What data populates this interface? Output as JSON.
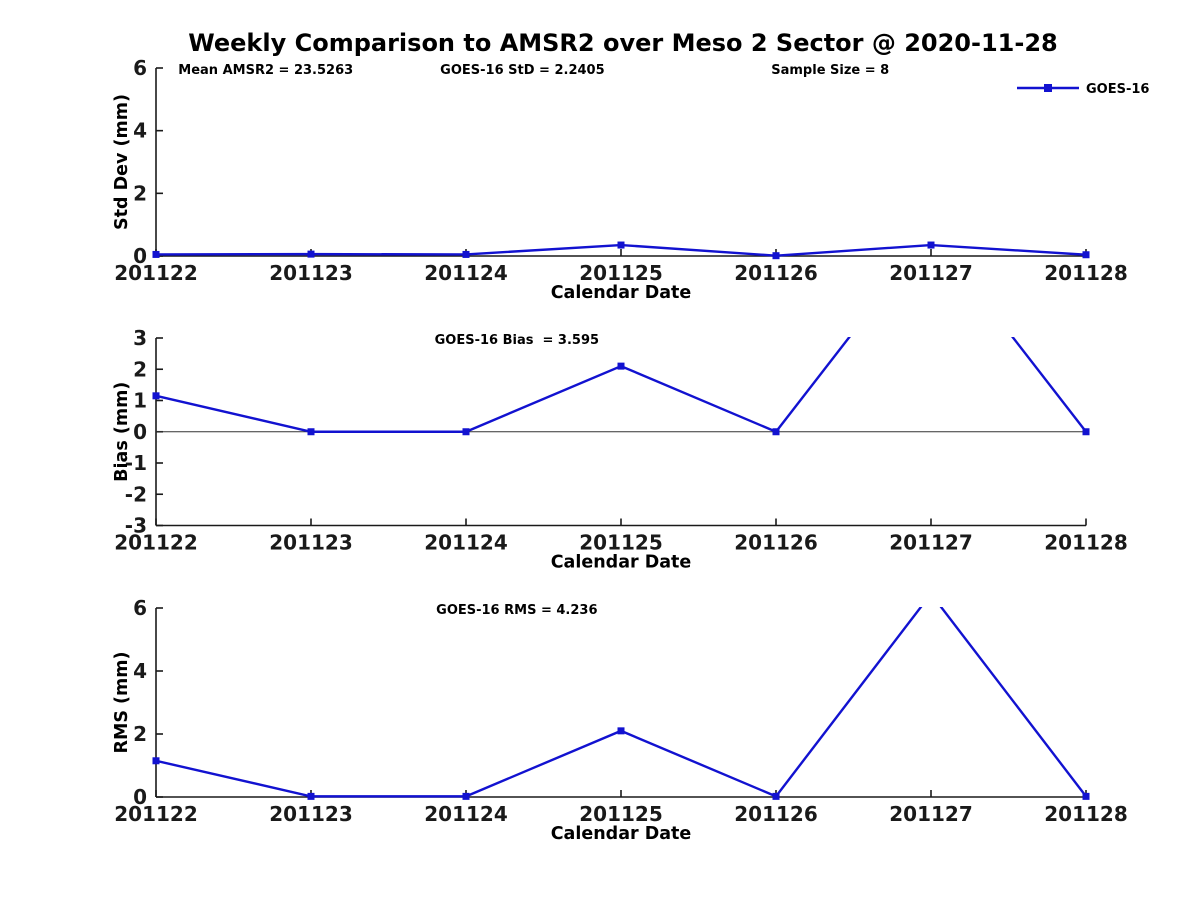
{
  "title": "Weekly Comparison to AMSR2 over Meso 2 Sector @ 2020-11-28",
  "colors": {
    "line": "#1212d0",
    "axis": "#1a1a1a",
    "tick_label": "#1a1a1a",
    "label_text": "#000000",
    "zero_line": "#333333"
  },
  "legend": {
    "label": "GOES-16",
    "position": "top-right",
    "frame": false
  },
  "chart_data": [
    {
      "type": "line",
      "ylabel": "Std Dev (mm)",
      "xlabel": "Calendar Date",
      "ylim": [
        0,
        6
      ],
      "yticks": [
        0,
        2,
        4,
        6
      ],
      "grid": false,
      "categories": [
        "201122",
        "201123",
        "201124",
        "201125",
        "201126",
        "201127",
        "201128"
      ],
      "series": [
        {
          "name": "GOES-16",
          "values": [
            0.05,
            0.06,
            0.05,
            0.35,
            0.01,
            0.35,
            0.04
          ]
        }
      ],
      "annotations": [
        {
          "text": "Mean AMSR2 = 23.5263",
          "xfrac": 0.118
        },
        {
          "text": "GOES-16 StD = 2.2405",
          "xfrac": 0.394
        },
        {
          "text": "Sample Size = 8",
          "xfrac": 0.725
        }
      ],
      "show_legend": true
    },
    {
      "type": "line",
      "ylabel": "Bias (mm)",
      "xlabel": "Calendar Date",
      "ylim": [
        -3,
        3
      ],
      "yticks": [
        -3,
        -2,
        -1,
        0,
        1,
        2,
        3
      ],
      "zeroline": true,
      "grid": false,
      "categories": [
        "201122",
        "201123",
        "201124",
        "201125",
        "201126",
        "201127",
        "201128"
      ],
      "series": [
        {
          "name": "GOES-16",
          "values": [
            1.15,
            0,
            0,
            2.1,
            0,
            6.4,
            0
          ]
        }
      ],
      "annotations": [
        {
          "text": "GOES-16 Bias  = 3.595",
          "xfrac": 0.388
        }
      ],
      "show_legend": false
    },
    {
      "type": "line",
      "ylabel": "RMS (mm)",
      "xlabel": "Calendar Date",
      "ylim": [
        0,
        6
      ],
      "yticks": [
        0,
        2,
        4,
        6
      ],
      "grid": false,
      "categories": [
        "201122",
        "201123",
        "201124",
        "201125",
        "201126",
        "201127",
        "201128"
      ],
      "series": [
        {
          "name": "GOES-16",
          "values": [
            1.15,
            0.02,
            0.02,
            2.1,
            0.02,
            6.45,
            0.02
          ]
        }
      ],
      "annotations": [
        {
          "text": "GOES-16 RMS = 4.236",
          "xfrac": 0.388
        }
      ],
      "show_legend": false
    }
  ]
}
